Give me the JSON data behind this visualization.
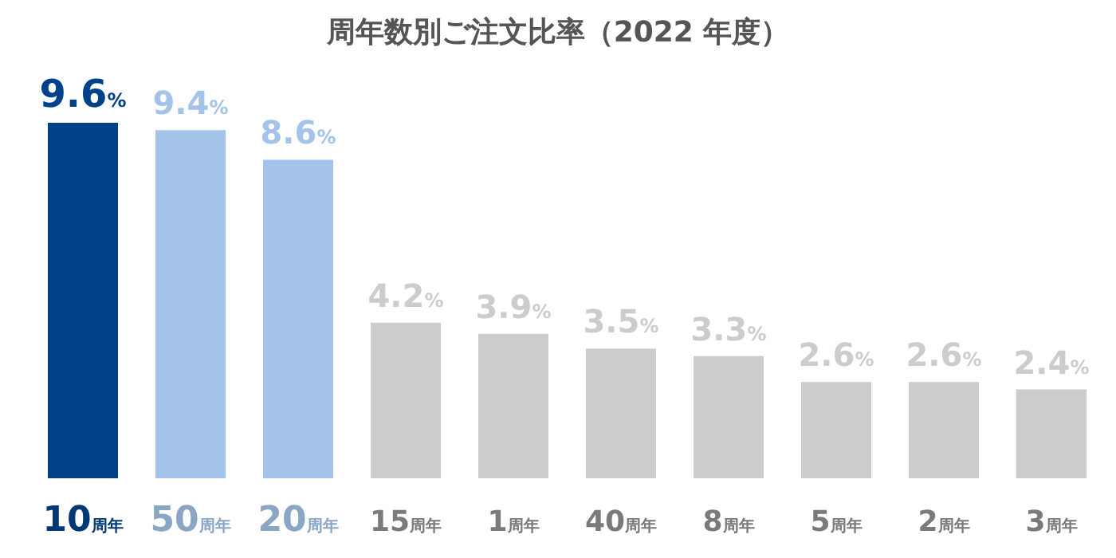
{
  "chart_data": {
    "type": "bar",
    "title": "周年数別ご注文比率（2022 年度）",
    "categories": [
      "10周年",
      "50周年",
      "20周年",
      "15周年",
      "1周年",
      "40周年",
      "8周年",
      "5周年",
      "2周年",
      "3周年"
    ],
    "values": [
      9.6,
      9.4,
      8.6,
      4.2,
      3.9,
      3.5,
      3.3,
      2.6,
      2.6,
      2.4
    ],
    "value_labels": [
      "9.6%",
      "9.4%",
      "8.6%",
      "4.2%",
      "3.9%",
      "3.5%",
      "3.3%",
      "2.6%",
      "2.6%",
      "2.4%"
    ],
    "colors": [
      "#00418a",
      "#a3c3e8",
      "#a3c3e8",
      "#cccccc",
      "#cccccc",
      "#cccccc",
      "#cccccc",
      "#cccccc",
      "#cccccc",
      "#cccccc"
    ]
  }
}
